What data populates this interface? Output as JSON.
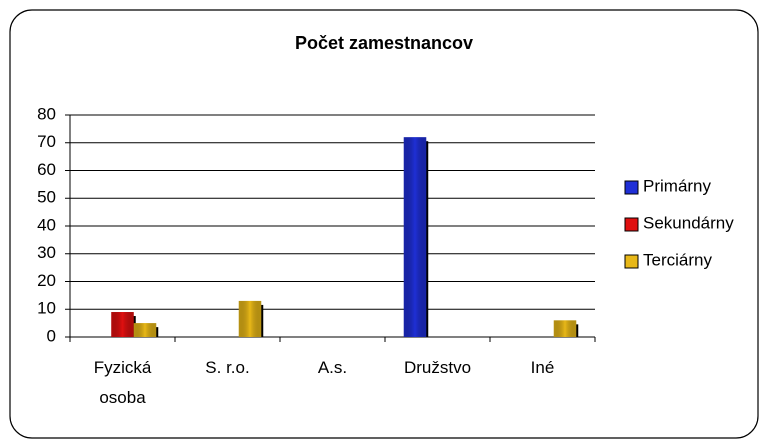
{
  "chart_data": {
    "type": "bar",
    "title": "Počet zamestnancov",
    "categories": [
      "Fyzická osoba",
      "S. r.o.",
      "A.s.",
      "Družstvo",
      "Iné"
    ],
    "series": [
      {
        "name": "Primárny",
        "color": "#1f2fd6",
        "values": [
          0,
          0,
          0,
          72,
          0
        ]
      },
      {
        "name": "Sekundárny",
        "color": "#e01010",
        "values": [
          9,
          0,
          0,
          0,
          0
        ]
      },
      {
        "name": "Terciárny",
        "color": "#e8b818",
        "values": [
          5,
          13,
          0,
          0,
          6
        ]
      }
    ],
    "ylim": [
      0,
      80
    ],
    "yticks": [
      0,
      10,
      20,
      30,
      40,
      50,
      60,
      70,
      80
    ],
    "grid": true,
    "legend": "right"
  }
}
